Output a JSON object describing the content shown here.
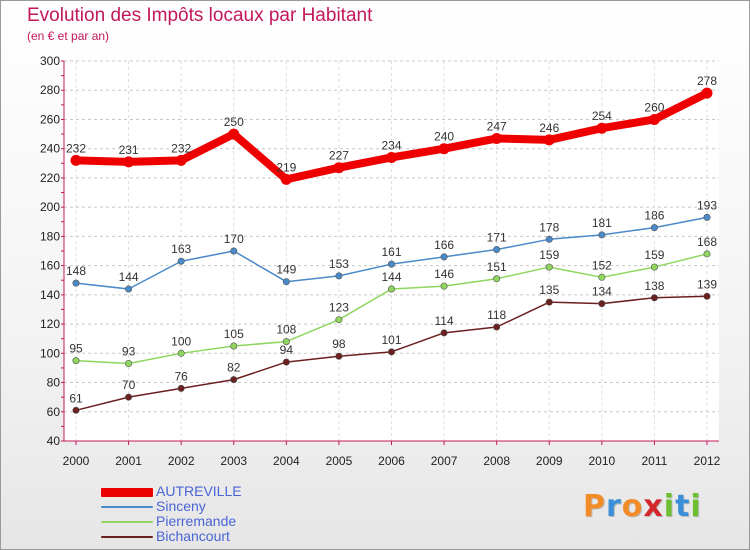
{
  "title": "Evolution des Impôts locaux par Habitant",
  "subtitle": "(en € et par an)",
  "brand": {
    "letters": [
      {
        "char": "P",
        "color": "#f28c28"
      },
      {
        "char": "r",
        "color": "#3a8fd8"
      },
      {
        "char": "o",
        "color": "#f28c28"
      },
      {
        "char": "x",
        "color": "#d4272c"
      },
      {
        "char": "i",
        "color": "#6cbf2f"
      },
      {
        "char": "t",
        "color": "#3a8fd8"
      },
      {
        "char": "i",
        "color": "#6cbf2f"
      }
    ]
  },
  "chart_data": {
    "type": "line",
    "title": "Evolution des Impôts locaux par Habitant",
    "subtitle": "(en € et par an)",
    "xlabel": "",
    "ylabel": "",
    "x": [
      "2000",
      "2001",
      "2002",
      "2003",
      "2004",
      "2005",
      "2006",
      "2007",
      "2008",
      "2009",
      "2010",
      "2011",
      "2012"
    ],
    "ylim": [
      40,
      300
    ],
    "yticks": [
      40,
      60,
      80,
      100,
      120,
      140,
      160,
      180,
      200,
      220,
      240,
      260,
      280,
      300
    ],
    "grid": "horizontal dashed",
    "legend_position": "bottom-left",
    "series": [
      {
        "name": "AUTREVILLE",
        "color": "#ee0000",
        "values": [
          232,
          231,
          232,
          250,
          219,
          227,
          234,
          240,
          247,
          246,
          254,
          260,
          278
        ]
      },
      {
        "name": "Sinceny",
        "color": "#4a8ac8",
        "values": [
          148,
          144,
          163,
          170,
          149,
          153,
          161,
          166,
          171,
          178,
          181,
          186,
          193
        ]
      },
      {
        "name": "Pierremande",
        "color": "#8ed65e",
        "values": [
          95,
          93,
          100,
          105,
          108,
          123,
          144,
          146,
          151,
          159,
          152,
          159,
          168
        ]
      },
      {
        "name": "Bichancourt",
        "color": "#6b1f1f",
        "values": [
          61,
          70,
          76,
          82,
          94,
          98,
          101,
          114,
          118,
          135,
          134,
          138,
          139
        ]
      }
    ]
  }
}
